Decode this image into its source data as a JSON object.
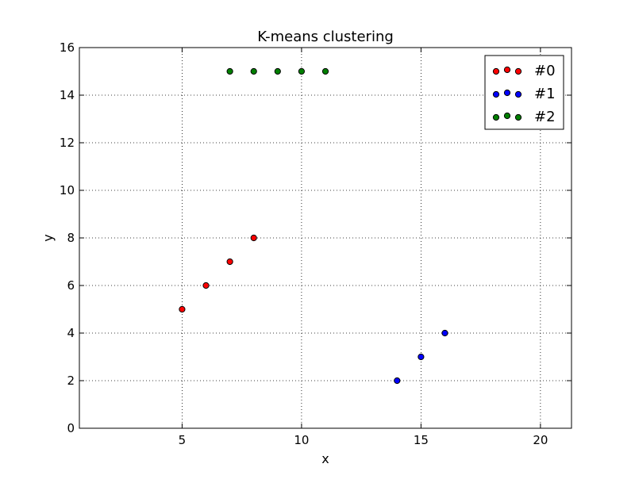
{
  "chart_data": {
    "type": "scatter",
    "title": "K-means clustering",
    "xlabel": "x",
    "ylabel": "y",
    "xlim": [
      0.7,
      21.3
    ],
    "ylim": [
      0,
      16
    ],
    "xticks": [
      5,
      10,
      15,
      20
    ],
    "yticks": [
      0,
      2,
      4,
      6,
      8,
      10,
      12,
      14,
      16
    ],
    "grid": true,
    "legend_position": "top-right",
    "series": [
      {
        "name": "#0",
        "color": "#ff0000",
        "points": [
          {
            "x": 5,
            "y": 5
          },
          {
            "x": 6,
            "y": 6
          },
          {
            "x": 7,
            "y": 7
          },
          {
            "x": 8,
            "y": 8
          }
        ]
      },
      {
        "name": "#1",
        "color": "#0000ff",
        "points": [
          {
            "x": 14,
            "y": 2
          },
          {
            "x": 15,
            "y": 3
          },
          {
            "x": 16,
            "y": 4
          }
        ]
      },
      {
        "name": "#2",
        "color": "#007f00",
        "points": [
          {
            "x": 7,
            "y": 15
          },
          {
            "x": 8,
            "y": 15
          },
          {
            "x": 9,
            "y": 15
          },
          {
            "x": 10,
            "y": 15
          },
          {
            "x": 11,
            "y": 15
          }
        ]
      }
    ]
  }
}
